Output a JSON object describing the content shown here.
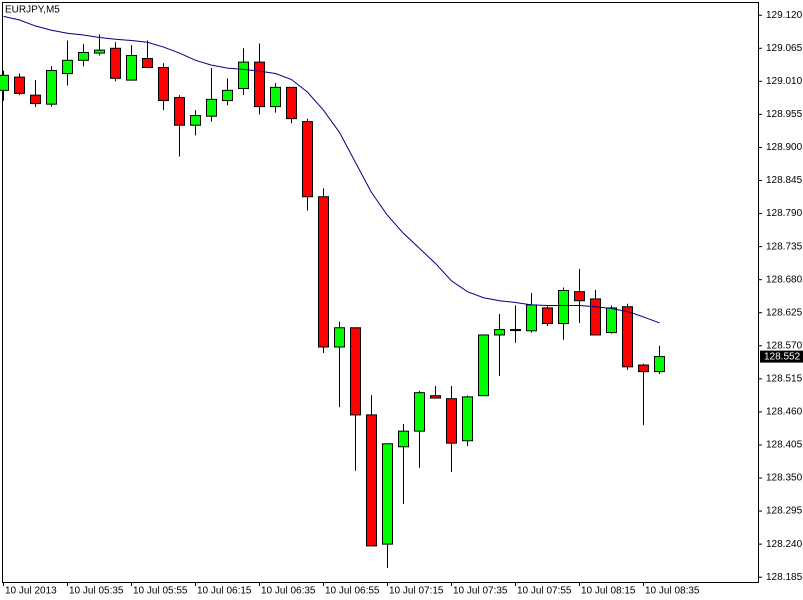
{
  "chart_data": {
    "type": "candlestick",
    "title": "EURJPY,M5",
    "categories": [
      "10 Jul 2013",
      null,
      null,
      null,
      "10 Jul 05:35",
      null,
      null,
      null,
      "10 Jul 05:55",
      null,
      null,
      null,
      "10 Jul 06:15",
      null,
      null,
      null,
      "10 Jul 06:35",
      null,
      null,
      null,
      "10 Jul 06:55",
      null,
      null,
      null,
      "10 Jul 07:15",
      null,
      null,
      null,
      "10 Jul 07:35",
      null,
      null,
      null,
      "10 Jul 07:55",
      null,
      null,
      null,
      "10 Jul 08:15",
      null,
      null,
      null,
      "10 Jul 08:35",
      null
    ],
    "open": [
      128.995,
      129.017,
      128.987,
      128.972,
      129.023,
      129.045,
      129.057,
      129.065,
      129.012,
      129.048,
      129.033,
      128.983,
      128.937,
      128.952,
      128.978,
      128.998,
      129.042,
      128.968,
      129.0,
      128.943,
      128.818,
      128.568,
      128.6,
      128.455,
      128.24,
      128.402,
      128.428,
      128.487,
      128.482,
      128.412,
      128.487,
      128.588,
      128.596,
      128.595,
      128.633,
      128.607,
      128.66,
      128.648,
      128.592,
      128.635,
      128.538,
      128.527
    ],
    "high": [
      129.028,
      129.023,
      129.012,
      129.035,
      129.078,
      129.072,
      129.088,
      129.075,
      129.07,
      129.078,
      129.04,
      128.987,
      128.962,
      129.032,
      129.015,
      129.065,
      129.073,
      129.007,
      129.0,
      128.948,
      128.832,
      128.61,
      128.6,
      128.488,
      128.407,
      128.44,
      128.495,
      128.503,
      128.503,
      128.487,
      128.588,
      128.623,
      128.637,
      128.658,
      128.637,
      128.667,
      128.698,
      128.663,
      128.637,
      128.64,
      128.54,
      128.57
    ],
    "low": [
      128.978,
      128.987,
      128.967,
      128.968,
      129.003,
      129.035,
      129.053,
      129.01,
      129.012,
      129.032,
      128.962,
      128.885,
      128.92,
      128.943,
      128.97,
      128.987,
      128.955,
      128.958,
      128.94,
      128.795,
      128.558,
      128.468,
      128.362,
      128.237,
      128.2,
      128.307,
      128.367,
      128.483,
      128.36,
      128.403,
      128.487,
      128.52,
      128.575,
      128.592,
      128.603,
      128.58,
      128.608,
      128.588,
      128.59,
      128.53,
      128.438,
      128.523
    ],
    "close": [
      129.02,
      128.99,
      128.973,
      129.028,
      129.045,
      129.058,
      129.062,
      129.015,
      129.053,
      129.033,
      128.978,
      128.937,
      128.953,
      128.98,
      128.995,
      129.042,
      128.968,
      129.0,
      128.948,
      128.818,
      128.568,
      128.6,
      128.455,
      128.237,
      128.407,
      128.428,
      128.492,
      128.483,
      128.408,
      128.485,
      128.588,
      128.597,
      128.597,
      128.638,
      128.607,
      128.662,
      128.645,
      128.588,
      128.633,
      128.535,
      128.527,
      128.552
    ],
    "up_color": "#00ff00",
    "down_color": "#ff0000",
    "moving_average": {
      "color": "#000080",
      "values": [
        129.118,
        129.112,
        129.102,
        129.095,
        129.09,
        129.087,
        129.083,
        129.08,
        129.078,
        129.075,
        129.067,
        129.057,
        129.045,
        129.037,
        129.032,
        129.03,
        129.027,
        129.023,
        129.013,
        128.992,
        128.962,
        128.925,
        128.875,
        128.825,
        128.787,
        128.757,
        128.732,
        128.707,
        128.678,
        128.66,
        128.65,
        128.645,
        128.642,
        128.638,
        128.637,
        128.637,
        128.637,
        128.635,
        128.632,
        128.627,
        128.618,
        128.608
      ]
    },
    "last_price": 128.552,
    "ylim": [
      128.177,
      129.142
    ],
    "yticks": [
      {
        "value": 129.12,
        "label": "129.120"
      },
      129.065,
      {
        "value": 129.01,
        "label": "129.010"
      },
      128.955,
      {
        "value": 128.9,
        "label": "128.900"
      },
      128.845,
      {
        "value": 128.79,
        "label": "128.790"
      },
      128.735,
      {
        "value": 128.68,
        "label": "128.680"
      },
      128.625,
      {
        "value": 128.57,
        "label": "128.570"
      },
      128.515,
      {
        "value": 128.46,
        "label": "128.460"
      },
      128.405,
      {
        "value": 128.35,
        "label": "128.350"
      },
      128.295,
      {
        "value": 128.24,
        "label": "128.240"
      },
      128.185
    ]
  }
}
